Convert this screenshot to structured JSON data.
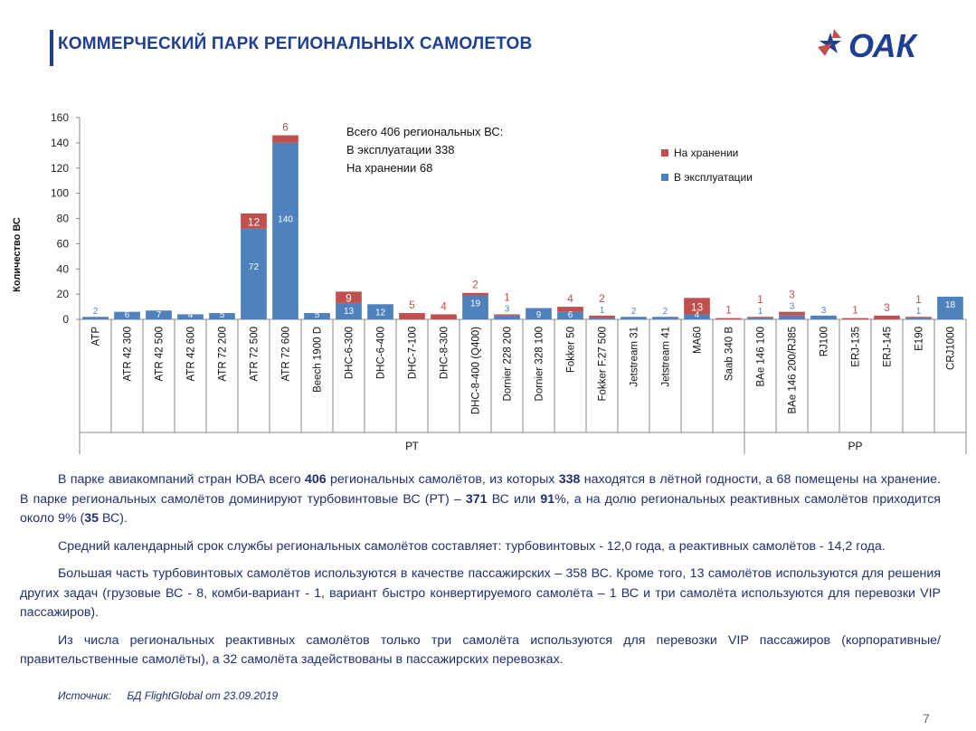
{
  "header": {
    "title": "КОММЕРЧЕСКИЙ ПАРК РЕГИОНАЛЬНЫХ САМОЛЕТОВ",
    "logo_text": "ОАК"
  },
  "colors": {
    "title": "#1f3f8f",
    "stored": "#c0504d",
    "operating": "#4f81bd",
    "body_text": "#1f2f6f"
  },
  "chart_data": {
    "type": "bar",
    "stacked": true,
    "ylabel": "Количество ВС",
    "ylim": [
      0,
      160
    ],
    "yticks": [
      0,
      20,
      40,
      60,
      80,
      100,
      120,
      140,
      160
    ],
    "categories": [
      "ATP",
      "ATR 42 300",
      "ATR 42 500",
      "ATR 42 600",
      "ATR 72 200",
      "ATR 72 500",
      "ATR 72 600",
      "Beech 1900 D",
      "DHC-6-300",
      "DHC-6-400",
      "DHC-7-100",
      "DHC-8-300",
      "DHC-8-400 (Q400)",
      "Dornier 228 200",
      "Dornier 328 100",
      "Fokker 50",
      "Fokker F.27 500",
      "Jetstream 31",
      "Jetstream 41",
      "MA60",
      "Saab 340 B",
      "BAe 146 100",
      "BAe 146 200/RJ85",
      "RJ100",
      "ERJ-135",
      "ERJ-145",
      "E190",
      "CRJ1000"
    ],
    "series": [
      {
        "name": "В эксплуатации",
        "color": "#4f81bd",
        "values": [
          2,
          6,
          7,
          4,
          5,
          72,
          140,
          5,
          13,
          12,
          0,
          0,
          19,
          3,
          9,
          6,
          1,
          2,
          2,
          4,
          0,
          1,
          3,
          3,
          0,
          0,
          1,
          18
        ]
      },
      {
        "name": "На хранении",
        "color": "#c0504d",
        "values": [
          0,
          0,
          0,
          0,
          0,
          12,
          6,
          0,
          9,
          0,
          5,
          4,
          2,
          1,
          0,
          4,
          2,
          0,
          0,
          13,
          1,
          1,
          3,
          0,
          1,
          3,
          1,
          0
        ]
      }
    ],
    "groups": [
      {
        "label": "РТ",
        "from": 0,
        "to": 20
      },
      {
        "label": "РР",
        "from": 21,
        "to": 27
      }
    ],
    "legend_position": "top-right",
    "annotation": [
      "Всего 406 региональных ВС:",
      "В эксплуатации 338",
      "На хранении 68"
    ]
  },
  "paragraphs": [
    [
      {
        "t": "В парке авиакомпаний стран ЮВА всего "
      },
      {
        "t": "406",
        "b": true
      },
      {
        "t": " региональных самолётов, из которых "
      },
      {
        "t": "338",
        "b": true
      },
      {
        "t": " находятся в лётной годности, а 68 помещены на хранение. В парке региональных самолётов доминируют турбовинтовые ВС (РТ) – "
      },
      {
        "t": "371",
        "b": true
      },
      {
        "t": " ВС или "
      },
      {
        "t": "91",
        "b": true
      },
      {
        "t": "%, а на долю региональных реактивных самолётов приходится около 9% ("
      },
      {
        "t": "35",
        "b": true
      },
      {
        "t": " ВС)."
      }
    ],
    [
      {
        "t": "Средний календарный срок службы региональных самолётов составляет: турбовинтовых - 12,0 года, а реактивных  самолётов - 14,2 года."
      }
    ],
    [
      {
        "t": "Большая часть турбовинтовых самолётов используются в качестве пассажирских – 358 ВС. Кроме того, 13 самолётов используются для решения других задач (грузовые ВС - 8, комби-вариант - 1, вариант быстро конвертируемого самолёта – 1 ВС и три самолёта используются для перевозки VIP пассажиров)."
      }
    ],
    [
      {
        "t": "Из числа региональных реактивных самолётов только три самолёта используются для перевозки VIP пассажиров (корпоративные/правительственные самолёты), а 32 самолёта задействованы в пассажирских перевозках."
      }
    ]
  ],
  "source": {
    "label": "Источник:",
    "text": "БД FlightGlobal от 23.09.2019"
  },
  "page_number": "7"
}
